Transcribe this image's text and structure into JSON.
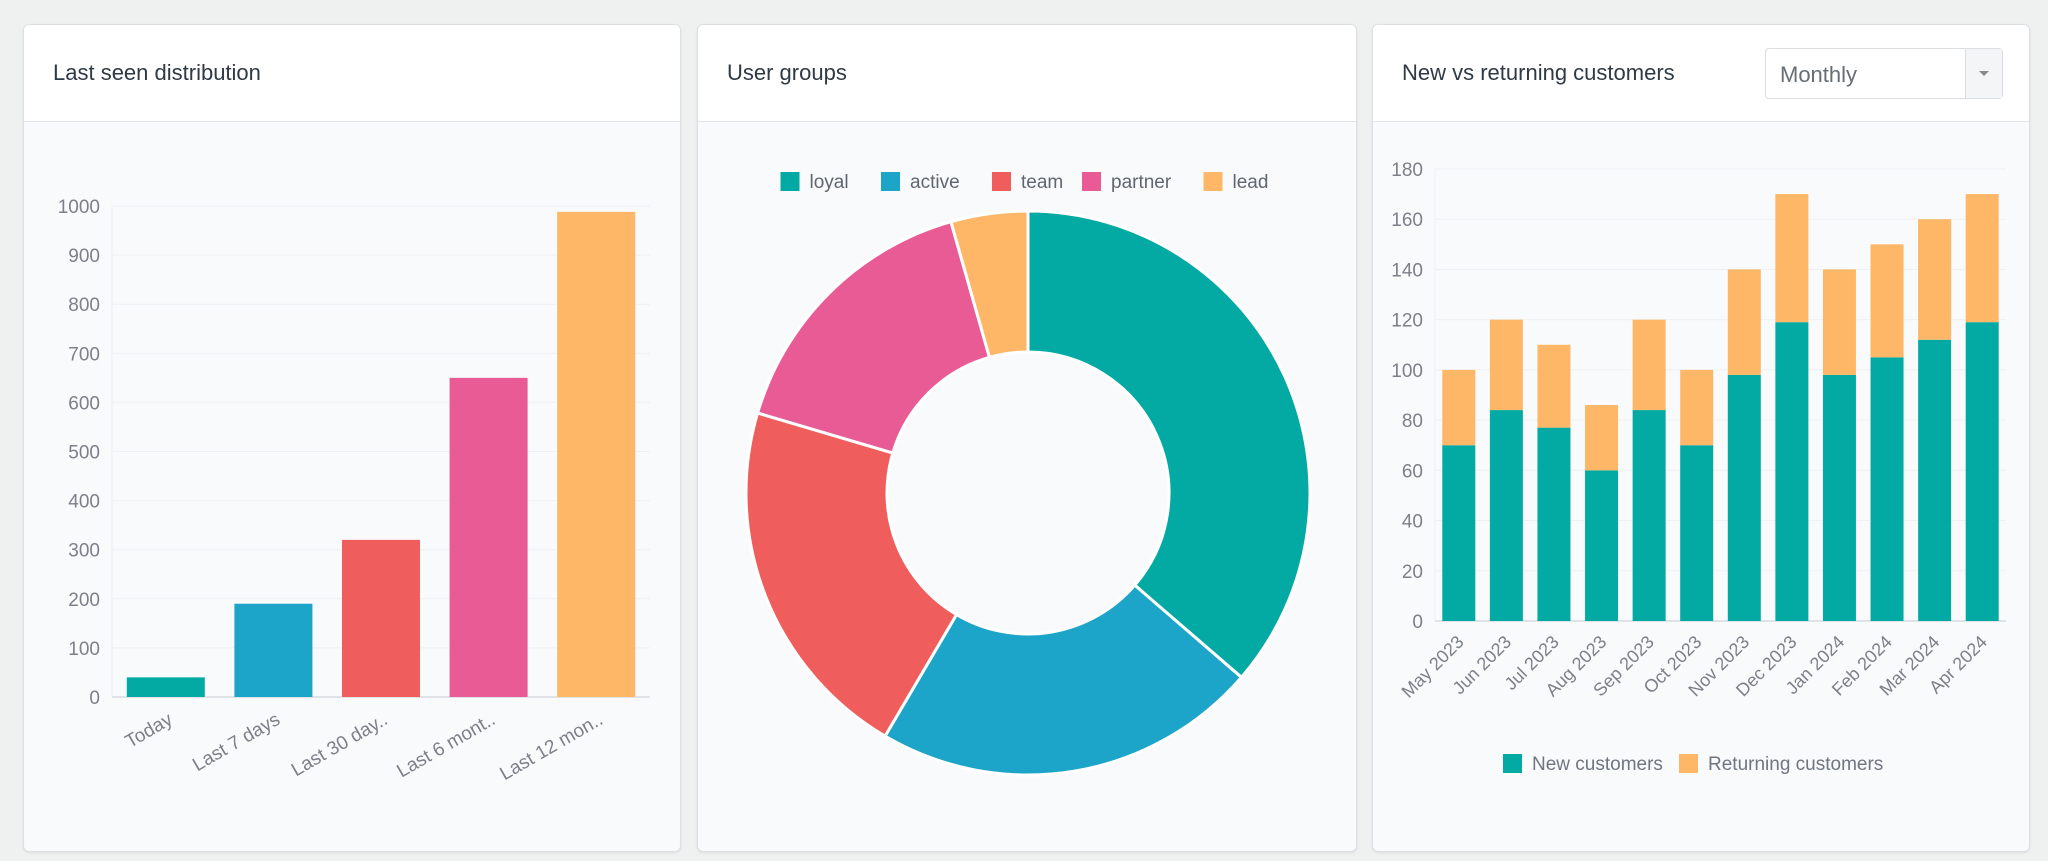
{
  "colors": {
    "teal": "#03aaa4",
    "blue": "#1da5c9",
    "red": "#ef5d5c",
    "pink": "#e95b94",
    "orange": "#fdb766"
  },
  "panels": {
    "last_seen": {
      "title": "Last seen distribution"
    },
    "user_groups": {
      "title": "User groups"
    },
    "customers": {
      "title": "New vs returning customers",
      "period_select": {
        "value": "Monthly"
      }
    }
  },
  "chart_data": [
    {
      "type": "bar",
      "title": "Last seen distribution",
      "categories": [
        "Today",
        "Last 7 days",
        "Last 30 day..",
        "Last 6 mont..",
        "Last 12 mon.."
      ],
      "values": [
        40,
        190,
        320,
        650,
        988
      ],
      "colors": [
        "#03aaa4",
        "#1da5c9",
        "#ef5d5c",
        "#e95b94",
        "#fdb766"
      ],
      "ylim": [
        0,
        1000
      ],
      "yticks": [
        0,
        100,
        200,
        300,
        400,
        500,
        600,
        700,
        800,
        900,
        1000
      ],
      "grid": true
    },
    {
      "type": "pie",
      "title": "User groups",
      "donut": true,
      "labels": [
        "loyal",
        "active",
        "team",
        "partner",
        "lead"
      ],
      "values": [
        36.3,
        22.1,
        21.1,
        16.0,
        4.4
      ],
      "colors": [
        "#03aaa4",
        "#1da5c9",
        "#ef5d5c",
        "#e95b94",
        "#fdb766"
      ],
      "legend": "top"
    },
    {
      "type": "bar",
      "stacked": true,
      "title": "New vs returning customers",
      "categories": [
        "May 2023",
        "Jun 2023",
        "Jul 2023",
        "Aug 2023",
        "Sep 2023",
        "Oct 2023",
        "Nov 2023",
        "Dec 2023",
        "Jan 2024",
        "Feb 2024",
        "Mar 2024",
        "Apr 2024"
      ],
      "series": [
        {
          "name": "New customers",
          "color": "#03aaa4",
          "values": [
            70,
            84,
            77,
            60,
            84,
            70,
            98,
            119,
            98,
            105,
            112,
            119
          ]
        },
        {
          "name": "Returning customers",
          "color": "#fdb766",
          "values": [
            30,
            36,
            33,
            26,
            36,
            30,
            42,
            51,
            42,
            45,
            48,
            51
          ]
        }
      ],
      "ylim": [
        0,
        180
      ],
      "yticks": [
        0,
        20,
        40,
        60,
        80,
        100,
        120,
        140,
        160,
        180
      ],
      "grid": true,
      "legend": "bottom"
    }
  ]
}
